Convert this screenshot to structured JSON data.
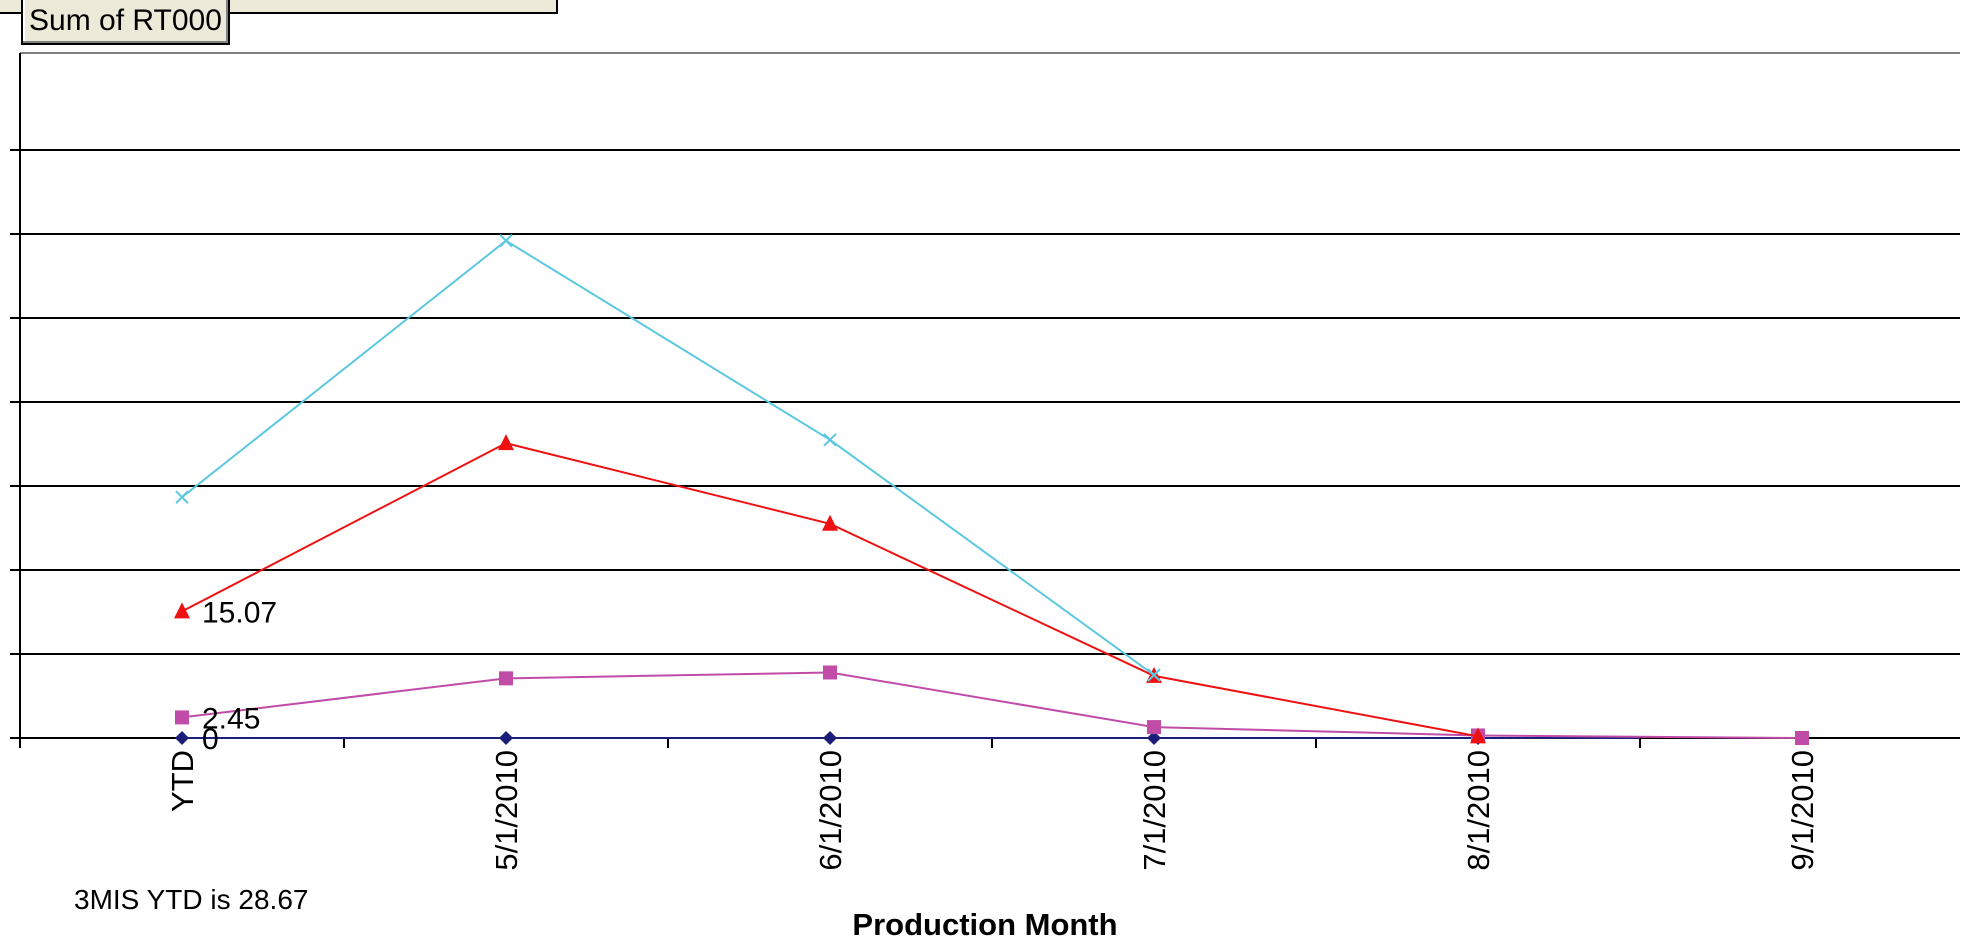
{
  "pivot": {
    "data_field_label": "Sum of RT000"
  },
  "note": "3MIS YTD is 28.67",
  "chart_data": {
    "type": "line",
    "xlabel": "Production Month",
    "ylabel": "",
    "ylim": [
      0,
      70
    ],
    "grid": true,
    "categories": [
      "YTD",
      "5/1/2010",
      "6/1/2010",
      "7/1/2010",
      "8/1/2010",
      "9/1/2010"
    ],
    "series": [
      {
        "color": "#1b1f7a",
        "marker": "diamond",
        "values": [
          0,
          0,
          0,
          0,
          0,
          null
        ],
        "labels": {
          "0": "0"
        }
      },
      {
        "color": "#c04ca8",
        "marker": "square",
        "values": [
          2.45,
          7.1,
          7.8,
          1.3,
          0.3,
          0.0
        ],
        "labels": {
          "0": "2.45"
        }
      },
      {
        "color": "#ee1111",
        "marker": "triangle",
        "values": [
          15.07,
          35.1,
          25.5,
          7.4,
          0.2,
          null
        ],
        "labels": {
          "0": "15.07"
        }
      },
      {
        "color": "#5bc8e0",
        "marker": "x",
        "values": [
          28.67,
          59.2,
          35.5,
          7.5,
          null,
          null
        ],
        "labels": {}
      }
    ],
    "extra_line": {
      "color": "#1b1f7a",
      "values": [
        0,
        0
      ]
    }
  }
}
